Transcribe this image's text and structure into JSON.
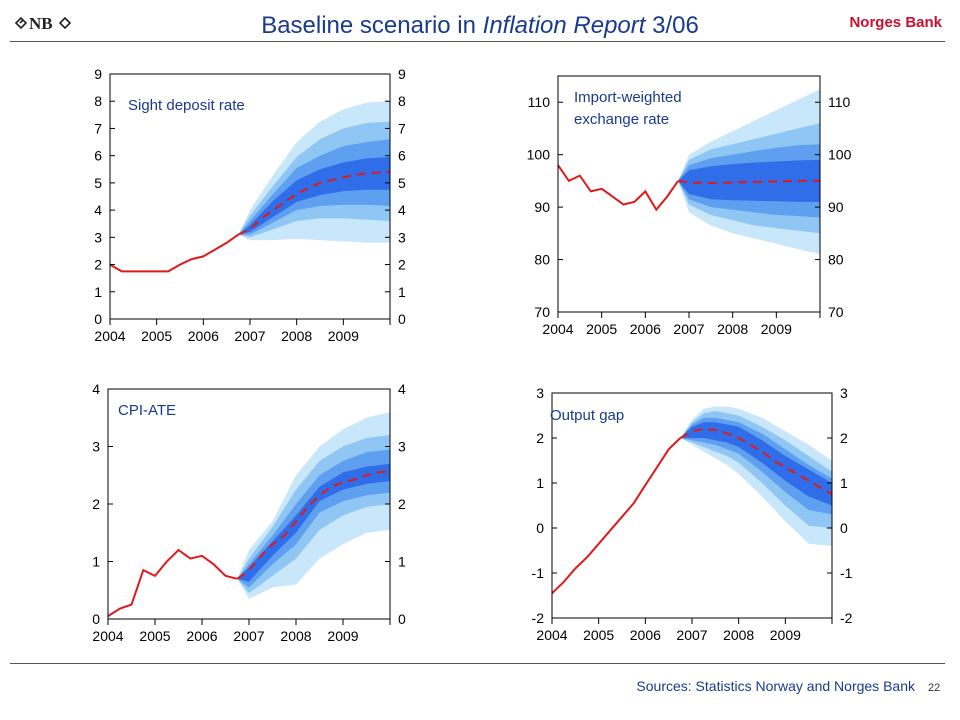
{
  "header": {
    "logo_text": "NB",
    "title_prefix": "Baseline scenario in ",
    "title_italic": "Inflation Report",
    "title_suffix": " 3/06",
    "bank_name": "Norges Bank"
  },
  "footer": {
    "sources": "Sources: Statistics Norway and Norges Bank",
    "page_number": "22"
  },
  "colors": {
    "history_line": "#e0191a",
    "projection_line": "#e0191a",
    "fan_outer": "#c9e7fa",
    "fan_2": "#8fc6f4",
    "fan_3": "#5f9ff0",
    "fan_inner": "#2f6ee8",
    "title": "#1a3a8f",
    "brand": "#c8102e"
  },
  "chart_data": [
    {
      "type": "line",
      "title": "Sight deposit rate",
      "ylim": [
        0,
        9
      ],
      "yticks": [
        0,
        1,
        2,
        3,
        4,
        5,
        6,
        7,
        8,
        9
      ],
      "xlim": [
        2004,
        2010
      ],
      "xticks": [
        "2004",
        "2005",
        "2006",
        "2007",
        "2008",
        "2009"
      ],
      "dual_axis": true,
      "series": [
        {
          "x": [
            2004.0,
            2004.25,
            2004.5,
            2004.75,
            2005.0,
            2005.25,
            2005.5,
            2005.75,
            2006.0,
            2006.25,
            2006.5,
            2006.75
          ],
          "y": [
            2.0,
            1.75,
            1.75,
            1.75,
            1.75,
            1.75,
            2.0,
            2.2,
            2.3,
            2.55,
            2.8,
            3.1
          ]
        },
        {
          "x": [
            2006.75,
            2007.0,
            2007.25,
            2007.5,
            2007.75,
            2008.0,
            2008.25,
            2008.5,
            2008.75,
            2009.0,
            2009.25,
            2009.5,
            2009.75,
            2010.0
          ],
          "y": [
            3.1,
            3.3,
            3.7,
            4.0,
            4.3,
            4.6,
            4.8,
            5.0,
            5.1,
            5.2,
            5.3,
            5.35,
            5.38,
            5.4
          ]
        }
      ],
      "fan": {
        "x": [
          2006.75,
          2007.0,
          2007.5,
          2008.0,
          2008.5,
          2009.0,
          2009.5,
          2010.0
        ],
        "bands": [
          {
            "lo": [
              3.1,
              2.9,
              2.9,
              2.95,
              2.9,
              2.85,
              2.8,
              2.8
            ],
            "hi": [
              3.1,
              4.0,
              5.3,
              6.5,
              7.25,
              7.7,
              7.95,
              8.0
            ]
          },
          {
            "lo": [
              3.1,
              3.0,
              3.3,
              3.6,
              3.7,
              3.7,
              3.65,
              3.6
            ],
            "hi": [
              3.1,
              3.8,
              4.9,
              5.95,
              6.6,
              7.0,
              7.2,
              7.25
            ]
          },
          {
            "lo": [
              3.1,
              3.1,
              3.55,
              4.0,
              4.15,
              4.2,
              4.2,
              4.15
            ],
            "hi": [
              3.1,
              3.6,
              4.6,
              5.55,
              6.0,
              6.35,
              6.5,
              6.6
            ]
          },
          {
            "lo": [
              3.1,
              3.2,
              3.75,
              4.3,
              4.55,
              4.7,
              4.75,
              4.75
            ],
            "hi": [
              3.1,
              3.45,
              4.35,
              5.1,
              5.5,
              5.75,
              5.9,
              5.95
            ]
          }
        ]
      }
    },
    {
      "type": "line",
      "title": "Import-weighted exchange rate",
      "ylim": [
        70,
        115
      ],
      "yticks": [
        70,
        80,
        90,
        100,
        110
      ],
      "xlim": [
        2004,
        2010
      ],
      "xticks": [
        "2004",
        "2005",
        "2006",
        "2007",
        "2008",
        "2009"
      ],
      "dual_axis": true,
      "series": [
        {
          "x": [
            2004.0,
            2004.25,
            2004.5,
            2004.75,
            2005.0,
            2005.25,
            2005.5,
            2005.75,
            2006.0,
            2006.25,
            2006.5,
            2006.75
          ],
          "y": [
            98,
            95,
            96,
            93,
            93.5,
            92,
            90.5,
            91,
            93,
            89.5,
            92,
            95
          ]
        },
        {
          "x": [
            2006.75,
            2007.0,
            2007.5,
            2008.0,
            2008.5,
            2009.0,
            2009.5,
            2010.0
          ],
          "y": [
            95,
            94.7,
            94.6,
            94.7,
            94.8,
            94.9,
            95.0,
            95.0
          ]
        }
      ],
      "fan": {
        "x": [
          2006.75,
          2007.0,
          2007.5,
          2008.0,
          2008.5,
          2009.0,
          2009.5,
          2010.0
        ],
        "bands": [
          {
            "lo": [
              95,
              89,
              86.5,
              85,
              84,
              83,
              82,
              81
            ],
            "hi": [
              95,
              100,
              102.5,
              104.5,
              106.5,
              108.5,
              110.5,
              112.5
            ]
          },
          {
            "lo": [
              95,
              90.5,
              88.5,
              87.5,
              86.5,
              86,
              85.5,
              85
            ],
            "hi": [
              95,
              99,
              101,
              102,
              103,
              104,
              105,
              106
            ]
          },
          {
            "lo": [
              95,
              91.5,
              90,
              89.5,
              89,
              88.5,
              88.3,
              88
            ],
            "hi": [
              95,
              98,
              99.3,
              100,
              100.7,
              101.3,
              101.8,
              102
            ]
          },
          {
            "lo": [
              95,
              92.5,
              91.5,
              91.3,
              91.2,
              91.1,
              91.0,
              91
            ],
            "hi": [
              95,
              97,
              97.8,
              98.2,
              98.5,
              98.7,
              98.9,
              99
            ]
          }
        ]
      }
    },
    {
      "type": "line",
      "title": "CPI-ATE",
      "ylim": [
        0,
        4
      ],
      "yticks": [
        0,
        1,
        2,
        3,
        4
      ],
      "xlim": [
        2004,
        2010
      ],
      "xticks": [
        "2004",
        "2005",
        "2006",
        "2007",
        "2008",
        "2009"
      ],
      "dual_axis": true,
      "series": [
        {
          "x": [
            2004.0,
            2004.25,
            2004.5,
            2004.75,
            2005.0,
            2005.25,
            2005.5,
            2005.75,
            2006.0,
            2006.25,
            2006.5,
            2006.75
          ],
          "y": [
            0.05,
            0.18,
            0.25,
            0.85,
            0.75,
            1.0,
            1.2,
            1.05,
            1.1,
            0.95,
            0.75,
            0.7
          ]
        },
        {
          "x": [
            2006.75,
            2007.0,
            2007.25,
            2007.5,
            2007.75,
            2008.0,
            2008.25,
            2008.5,
            2008.75,
            2009.0,
            2009.25,
            2009.5,
            2009.75,
            2010.0
          ],
          "y": [
            0.7,
            0.85,
            1.1,
            1.3,
            1.45,
            1.7,
            1.95,
            2.15,
            2.3,
            2.38,
            2.43,
            2.5,
            2.55,
            2.58
          ]
        }
      ],
      "fan": {
        "x": [
          2006.75,
          2007.0,
          2007.5,
          2008.0,
          2008.5,
          2009.0,
          2009.5,
          2010.0
        ],
        "bands": [
          {
            "lo": [
              0.7,
              0.35,
              0.55,
              0.6,
              1.05,
              1.3,
              1.5,
              1.55
            ],
            "hi": [
              0.7,
              1.2,
              1.7,
              2.5,
              3.0,
              3.3,
              3.5,
              3.6
            ]
          },
          {
            "lo": [
              0.7,
              0.45,
              0.75,
              1.05,
              1.55,
              1.8,
              1.95,
              2.0
            ],
            "hi": [
              0.7,
              1.05,
              1.6,
              2.25,
              2.75,
              3.0,
              3.15,
              3.2
            ]
          },
          {
            "lo": [
              0.7,
              0.55,
              0.95,
              1.3,
              1.85,
              2.05,
              2.15,
              2.2
            ],
            "hi": [
              0.7,
              0.95,
              1.45,
              2.0,
              2.5,
              2.75,
              2.9,
              2.95
            ]
          },
          {
            "lo": [
              0.7,
              0.65,
              1.1,
              1.5,
              2.05,
              2.25,
              2.35,
              2.4
            ],
            "hi": [
              0.7,
              0.9,
              1.35,
              1.8,
              2.3,
              2.55,
              2.65,
              2.7
            ]
          }
        ]
      }
    },
    {
      "type": "line",
      "title": "Output gap",
      "ylim": [
        -2,
        3
      ],
      "yticks": [
        -2,
        -1,
        0,
        1,
        2,
        3
      ],
      "xlim": [
        2004,
        2010
      ],
      "xticks": [
        "2004",
        "2005",
        "2006",
        "2007",
        "2008",
        "2009"
      ],
      "dual_axis": true,
      "series": [
        {
          "x": [
            2004.0,
            2004.25,
            2004.5,
            2004.75,
            2005.0,
            2005.25,
            2005.5,
            2005.75,
            2006.0,
            2006.25,
            2006.5,
            2006.75
          ],
          "y": [
            -1.45,
            -1.2,
            -0.9,
            -0.65,
            -0.35,
            -0.05,
            0.25,
            0.55,
            0.95,
            1.35,
            1.75,
            2.0
          ]
        },
        {
          "x": [
            2006.75,
            2007.0,
            2007.25,
            2007.5,
            2007.75,
            2008.0,
            2008.25,
            2008.5,
            2008.75,
            2009.0,
            2009.25,
            2009.5,
            2009.75,
            2010.0
          ],
          "y": [
            2.0,
            2.15,
            2.2,
            2.18,
            2.1,
            2.0,
            1.85,
            1.7,
            1.5,
            1.35,
            1.2,
            1.05,
            0.9,
            0.75
          ]
        }
      ],
      "fan": {
        "x": [
          2006.75,
          2007.0,
          2007.25,
          2007.5,
          2007.75,
          2008.0,
          2008.5,
          2009.0,
          2009.5,
          2010.0
        ],
        "bands": [
          {
            "lo": [
              2.0,
              1.85,
              1.7,
              1.55,
              1.4,
              1.2,
              0.7,
              0.15,
              -0.35,
              -0.4
            ],
            "hi": [
              2.0,
              2.4,
              2.65,
              2.7,
              2.7,
              2.65,
              2.45,
              2.15,
              1.85,
              1.5
            ]
          },
          {
            "lo": [
              2.0,
              1.9,
              1.8,
              1.7,
              1.6,
              1.45,
              1.0,
              0.5,
              0.05,
              0.0
            ],
            "hi": [
              2.0,
              2.35,
              2.55,
              2.6,
              2.55,
              2.5,
              2.25,
              1.95,
              1.6,
              1.25
            ]
          },
          {
            "lo": [
              2.0,
              1.95,
              1.9,
              1.85,
              1.75,
              1.65,
              1.25,
              0.8,
              0.4,
              0.3
            ],
            "hi": [
              2.0,
              2.3,
              2.45,
              2.45,
              2.4,
              2.35,
              2.1,
              1.75,
              1.4,
              1.1
            ]
          },
          {
            "lo": [
              2.0,
              2.0,
              2.0,
              1.95,
              1.9,
              1.8,
              1.45,
              1.05,
              0.7,
              0.5
            ],
            "hi": [
              2.0,
              2.25,
              2.35,
              2.35,
              2.3,
              2.25,
              1.95,
              1.6,
              1.3,
              1.0
            ]
          }
        ]
      }
    }
  ]
}
